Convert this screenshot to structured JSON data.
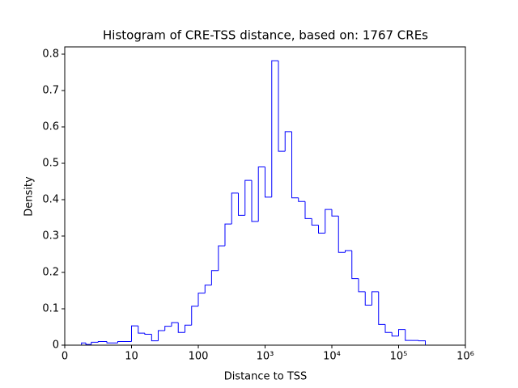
{
  "chart_data": {
    "type": "histogram",
    "title": "Histogram of CRE-TSS distance, based on: 1767 CREs",
    "xlabel": "Distance to TSS",
    "ylabel": "Density",
    "xscale": "symlog",
    "linthresh": 10,
    "color": "#0000ff",
    "bins": [
      2.51,
      3.16,
      3.98,
      5.01,
      6.31,
      7.94,
      10,
      12.6,
      15.8,
      20,
      25.1,
      31.6,
      39.8,
      50.1,
      63.1,
      79.4,
      100,
      126,
      158,
      200,
      251,
      316,
      398,
      501,
      631,
      794,
      1000,
      1259,
      1585,
      1995,
      2512,
      3162,
      3981,
      5012,
      6310,
      7943,
      10000,
      12589,
      15849,
      19953,
      25119,
      31623,
      39811,
      50119,
      63096,
      79433,
      100000,
      125893,
      158489,
      199526,
      251189
    ],
    "values": [
      0.006,
      0.002,
      0.008,
      0.01,
      0.006,
      0.01,
      0.053,
      0.033,
      0.03,
      0.012,
      0.04,
      0.052,
      0.062,
      0.035,
      0.055,
      0.107,
      0.143,
      0.165,
      0.205,
      0.273,
      0.333,
      0.418,
      0.357,
      0.453,
      0.34,
      0.49,
      0.407,
      0.782,
      0.533,
      0.587,
      0.405,
      0.395,
      0.348,
      0.33,
      0.308,
      0.373,
      0.355,
      0.255,
      0.26,
      0.183,
      0.147,
      0.11,
      0.147,
      0.057,
      0.035,
      0.025,
      0.043,
      0.013,
      0.013,
      0.012
    ],
    "xlim": [
      0,
      1000000
    ],
    "xticks": [
      0,
      10,
      100,
      {
        "value": 1000,
        "label": "10³"
      },
      {
        "value": 10000,
        "label": "10⁴"
      },
      {
        "value": 100000,
        "label": "10⁵"
      },
      {
        "value": 1000000,
        "label": "10⁶"
      }
    ],
    "ylim": [
      0,
      0.82
    ],
    "yticks": [
      0,
      0.1,
      0.2,
      0.3,
      0.4,
      0.5,
      0.6,
      0.7,
      0.8
    ]
  }
}
